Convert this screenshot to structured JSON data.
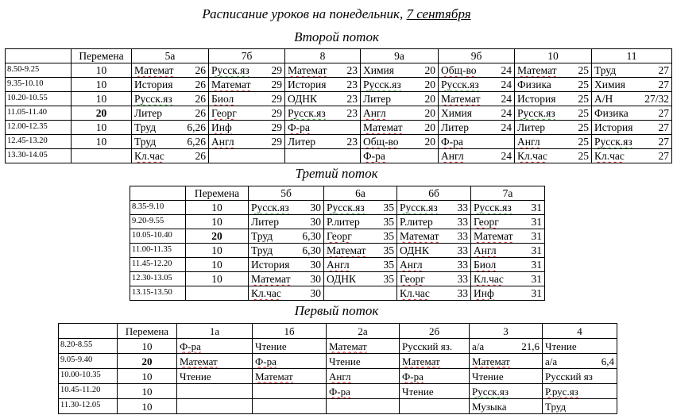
{
  "title": {
    "main": "Расписание уроков на понедельник, ",
    "date": "7 сентября"
  },
  "streams": [
    {
      "heading": "Второй поток",
      "break_header": "Перемена",
      "classes": [
        "5а",
        "7б",
        "8",
        "9а",
        "9б",
        "10",
        "11"
      ],
      "rows": [
        {
          "time": "8.50-9.25",
          "break": "10",
          "bold": false,
          "cells": [
            [
              "Математ",
              "26"
            ],
            [
              "Русск.яз",
              "29"
            ],
            [
              "Математ",
              "23"
            ],
            [
              "Химия",
              "20"
            ],
            [
              "Общ-во",
              "24"
            ],
            [
              "Математ",
              "25"
            ],
            [
              "Труд",
              "27"
            ]
          ]
        },
        {
          "time": "9.35-10.10",
          "break": "10",
          "bold": false,
          "cells": [
            [
              "История",
              "26"
            ],
            [
              "Математ",
              "29"
            ],
            [
              "История",
              "23"
            ],
            [
              "Русск.яз",
              "20"
            ],
            [
              "Русск.яз",
              "24"
            ],
            [
              "Физика",
              "25"
            ],
            [
              "Химия",
              "27"
            ]
          ]
        },
        {
          "time": "10.20-10.55",
          "break": "10",
          "bold": false,
          "cells": [
            [
              "Русск.яз",
              "26"
            ],
            [
              "Биол",
              "29"
            ],
            [
              "ОДНК",
              "23"
            ],
            [
              "Литер",
              "20"
            ],
            [
              "Математ",
              "24"
            ],
            [
              "История",
              "25"
            ],
            [
              "А/Н",
              "27/32"
            ]
          ]
        },
        {
          "time": "11.05-11.40",
          "break": "20",
          "bold": true,
          "cells": [
            [
              "Литер",
              "26"
            ],
            [
              "Георг",
              "29"
            ],
            [
              "Русск.яз",
              "23"
            ],
            [
              "Англ",
              "20"
            ],
            [
              "Химия",
              "24"
            ],
            [
              "Русск.яз",
              "25"
            ],
            [
              "Физика",
              "27"
            ]
          ]
        },
        {
          "time": "12.00-12.35",
          "break": "10",
          "bold": false,
          "cells": [
            [
              "Труд",
              "6,26"
            ],
            [
              "Инф",
              "29"
            ],
            [
              "Ф-ра",
              ""
            ],
            [
              "Математ",
              "20"
            ],
            [
              "Литер",
              "24"
            ],
            [
              "Литер",
              "25"
            ],
            [
              "История",
              "27"
            ]
          ]
        },
        {
          "time": "12.45-13.20",
          "break": "10",
          "bold": false,
          "cells": [
            [
              "Труд",
              "6,26"
            ],
            [
              "Англ",
              "29"
            ],
            [
              "Литер",
              "23"
            ],
            [
              "Общ-во",
              "20"
            ],
            [
              "Ф-ра",
              ""
            ],
            [
              "Англ",
              "25"
            ],
            [
              "Русск.яз",
              "27"
            ]
          ]
        },
        {
          "time": "13.30-14.05",
          "break": "",
          "bold": false,
          "cells": [
            [
              "Кл.час",
              "26"
            ],
            [
              "",
              ""
            ],
            [
              "",
              ""
            ],
            [
              "Ф-ра",
              ""
            ],
            [
              "Англ",
              "24"
            ],
            [
              "Кл.час",
              "25"
            ],
            [
              "Кл.час",
              "27"
            ]
          ]
        }
      ]
    },
    {
      "heading": "Третий поток",
      "break_header": "Перемена",
      "classes": [
        "5б",
        "6а",
        "6б",
        "7а"
      ],
      "rows": [
        {
          "time": "8.35-9.10",
          "break": "10",
          "bold": false,
          "cells": [
            [
              "Русск.яз",
              "30"
            ],
            [
              "Русск.яз",
              "35"
            ],
            [
              "Русск.яз",
              "33"
            ],
            [
              "Русск.яз",
              "31"
            ]
          ]
        },
        {
          "time": "9.20-9.55",
          "break": "10",
          "bold": false,
          "cells": [
            [
              "Литер",
              "30"
            ],
            [
              "Р.литер",
              "35"
            ],
            [
              "Р.литер",
              "33"
            ],
            [
              "Георг",
              "31"
            ]
          ]
        },
        {
          "time": "10.05-10.40",
          "break": "20",
          "bold": true,
          "cells": [
            [
              "Труд",
              "6,30"
            ],
            [
              "Георг",
              "35"
            ],
            [
              "Математ",
              "33"
            ],
            [
              "Математ",
              "31"
            ]
          ]
        },
        {
          "time": "11.00-11.35",
          "break": "10",
          "bold": false,
          "cells": [
            [
              "Труд",
              "6,30"
            ],
            [
              "Математ",
              "35"
            ],
            [
              "ОДНК",
              "33"
            ],
            [
              "Англ",
              "31"
            ]
          ]
        },
        {
          "time": "11.45-12.20",
          "break": "10",
          "bold": false,
          "cells": [
            [
              "История",
              "30"
            ],
            [
              "Англ",
              "35"
            ],
            [
              "Англ",
              "33"
            ],
            [
              "Биол",
              "31"
            ]
          ]
        },
        {
          "time": "12.30-13.05",
          "break": "10",
          "bold": false,
          "cells": [
            [
              "Математ",
              "30"
            ],
            [
              "ОДНК",
              "35"
            ],
            [
              "Георг",
              "33"
            ],
            [
              "Кл.час",
              "31"
            ]
          ]
        },
        {
          "time": "13.15-13.50",
          "break": "",
          "bold": false,
          "cells": [
            [
              "Кл.час",
              "30"
            ],
            [
              "",
              ""
            ],
            [
              "Кл.час",
              "33"
            ],
            [
              "Инф",
              "31"
            ]
          ]
        }
      ]
    },
    {
      "heading": "Первый поток",
      "break_header": "Перемена",
      "classes": [
        "1а",
        "1б",
        "2а",
        "2б",
        "3",
        "4"
      ],
      "rows": [
        {
          "time": "8.20-8.55",
          "break": "10",
          "bold": false,
          "cells": [
            [
              "Ф-ра",
              ""
            ],
            [
              "Чтение",
              ""
            ],
            [
              "Математ",
              ""
            ],
            [
              "Русский яз.",
              ""
            ],
            [
              "а/а",
              "21,6"
            ],
            [
              "Чтение",
              ""
            ]
          ]
        },
        {
          "time": "9.05-9.40",
          "break": "20",
          "bold": true,
          "cells": [
            [
              "Математ",
              ""
            ],
            [
              "Ф-ра",
              ""
            ],
            [
              "Чтение",
              ""
            ],
            [
              "Математ",
              ""
            ],
            [
              "Математ",
              ""
            ],
            [
              "а/а",
              "6,4"
            ]
          ]
        },
        {
          "time": "10.00-10.35",
          "break": "10",
          "bold": false,
          "cells": [
            [
              "Чтение",
              ""
            ],
            [
              "Математ",
              ""
            ],
            [
              "Англ",
              ""
            ],
            [
              "Ф-ра",
              ""
            ],
            [
              "Чтение",
              ""
            ],
            [
              "Русский яз",
              ""
            ]
          ]
        },
        {
          "time": "10.45-11.20",
          "break": "10",
          "bold": false,
          "cells": [
            [
              "",
              ""
            ],
            [
              "",
              ""
            ],
            [
              "Ф-ра",
              ""
            ],
            [
              "Чтение",
              ""
            ],
            [
              "Русск.яз",
              ""
            ],
            [
              "Р.рус.яз",
              ""
            ]
          ]
        },
        {
          "time": "11.30-12.05",
          "break": "10",
          "bold": false,
          "cells": [
            [
              "",
              ""
            ],
            [
              "",
              ""
            ],
            [
              "",
              ""
            ],
            [
              "",
              ""
            ],
            [
              "Музыка",
              ""
            ],
            [
              "Труд",
              ""
            ]
          ]
        }
      ]
    }
  ]
}
